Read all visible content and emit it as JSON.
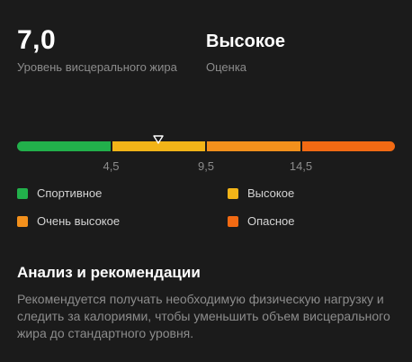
{
  "summary": {
    "value": "7,0",
    "value_label": "Уровень висцерального жира",
    "rating": "Высокое",
    "rating_label": "Оценка"
  },
  "scale": {
    "current_value": 7.0,
    "range": [
      0.5,
      18.5
    ],
    "segments": [
      {
        "name": "Спортивное",
        "from": 0.5,
        "to": 4.5,
        "color": "#22b04b"
      },
      {
        "name": "Высокое",
        "from": 4.5,
        "to": 9.5,
        "color": "#f2b418"
      },
      {
        "name": "Очень высокое",
        "from": 9.5,
        "to": 14.5,
        "color": "#f3901c"
      },
      {
        "name": "Опасное",
        "from": 14.5,
        "to": 18.5,
        "color": "#f26a13"
      }
    ],
    "ticks": [
      "4,5",
      "9,5",
      "14,5"
    ],
    "marker_color": "#ffffff"
  },
  "legend": [
    {
      "label": "Спортивное",
      "color": "#22b04b"
    },
    {
      "label": "Высокое",
      "color": "#f2b418"
    },
    {
      "label": "Очень высокое",
      "color": "#f3901c"
    },
    {
      "label": "Опасное",
      "color": "#f26a13"
    }
  ],
  "analysis": {
    "title": "Анализ и рекомендации",
    "text": "Рекомендуется получать необходимую физическую нагрузку и следить за калориями, чтобы уменьшить объем висцерального жира до стандартного уровня."
  }
}
